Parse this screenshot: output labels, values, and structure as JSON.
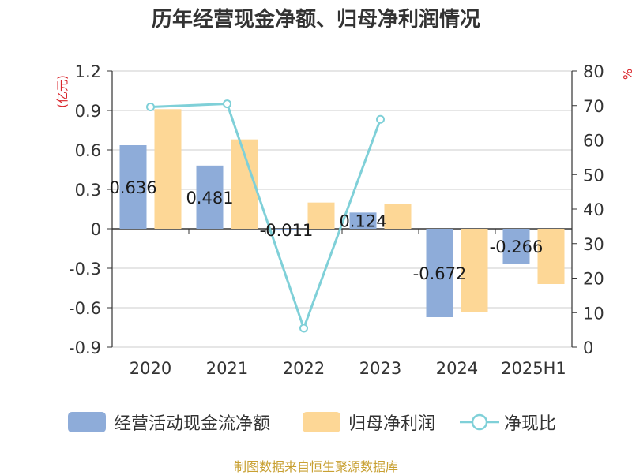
{
  "chart_data": {
    "type": "bar",
    "title": "历年经营现金净额、归母净利润情况",
    "categories": [
      "2020",
      "2021",
      "2022",
      "2023",
      "2024",
      "2025H1"
    ],
    "ylabel_left": "(亿元)",
    "ylabel_right": "%",
    "ylim_left": [
      -0.9,
      1.2
    ],
    "ylim_right": [
      0,
      80
    ],
    "yticks_left": [
      "1.2",
      "0.9",
      "0.6",
      "0.3",
      "0",
      "-0.3",
      "-0.6",
      "-0.9"
    ],
    "yticks_right": [
      "80",
      "70",
      "60",
      "50",
      "40",
      "30",
      "20",
      "10",
      "0"
    ],
    "grid": true,
    "legend_position": "bottom",
    "series": [
      {
        "name": "经营活动现金流净额",
        "type": "bar",
        "axis": "left",
        "color": "#8eacd9",
        "values": [
          0.636,
          0.481,
          -0.011,
          0.124,
          -0.672,
          -0.266
        ],
        "data_labels": [
          "0.636",
          "0.481",
          "-0.011",
          "0.124",
          "-0.672",
          "-0.266"
        ]
      },
      {
        "name": "归母净利润",
        "type": "bar",
        "axis": "left",
        "color": "#fdd796",
        "values": [
          0.91,
          0.68,
          0.2,
          0.19,
          -0.63,
          -0.42
        ]
      },
      {
        "name": "净现比",
        "type": "line",
        "axis": "right",
        "color": "#7fd0d8",
        "values": [
          69.6,
          70.5,
          5.5,
          66.0,
          null,
          null
        ]
      }
    ],
    "source": "制图数据来自恒生聚源数据库"
  }
}
